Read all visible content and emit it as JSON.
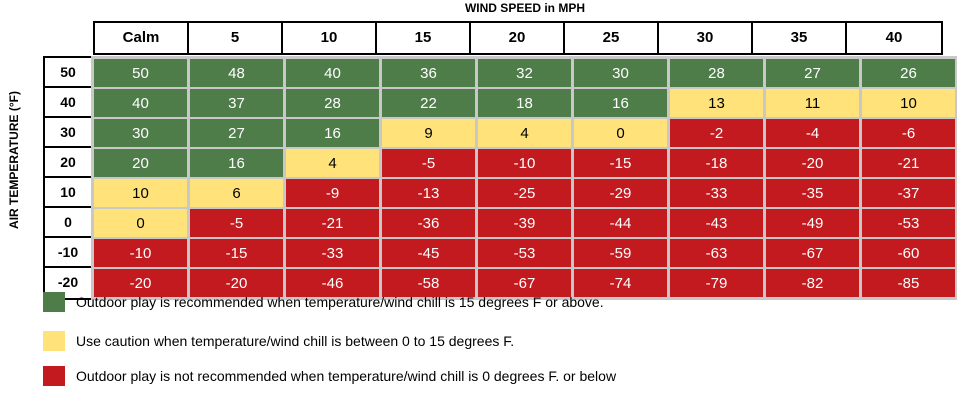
{
  "chart_data": {
    "type": "heatmap",
    "title": "WIND SPEED in MPH",
    "ylabel": "AIR TEMPERATURE (°F)",
    "columns": [
      "Calm",
      "5",
      "10",
      "15",
      "20",
      "25",
      "30",
      "35",
      "40"
    ],
    "rows": [
      "50",
      "40",
      "30",
      "20",
      "10",
      "0",
      "-10",
      "-20"
    ],
    "values": [
      [
        50,
        48,
        40,
        36,
        32,
        30,
        28,
        27,
        26
      ],
      [
        40,
        37,
        28,
        22,
        18,
        16,
        13,
        11,
        10
      ],
      [
        30,
        27,
        16,
        9,
        4,
        0,
        -2,
        -4,
        -6
      ],
      [
        20,
        16,
        4,
        -5,
        -10,
        -15,
        -18,
        -20,
        -21
      ],
      [
        10,
        6,
        -9,
        -13,
        -25,
        -29,
        -33,
        -35,
        -37
      ],
      [
        0,
        -5,
        -21,
        -36,
        -39,
        -44,
        -43,
        -49,
        -53
      ],
      [
        -10,
        -15,
        -33,
        -45,
        -53,
        -59,
        -63,
        -67,
        -60
      ],
      [
        -20,
        -20,
        -46,
        -58,
        -67,
        -74,
        -79,
        -82,
        -85
      ]
    ],
    "categories_color": [
      [
        "g",
        "g",
        "g",
        "g",
        "g",
        "g",
        "g",
        "g",
        "g"
      ],
      [
        "g",
        "g",
        "g",
        "g",
        "g",
        "g",
        "y",
        "y",
        "y"
      ],
      [
        "g",
        "g",
        "g",
        "y",
        "y",
        "y",
        "r",
        "r",
        "r"
      ],
      [
        "g",
        "g",
        "y",
        "r",
        "r",
        "r",
        "r",
        "r",
        "r"
      ],
      [
        "y",
        "y",
        "r",
        "r",
        "r",
        "r",
        "r",
        "r",
        "r"
      ],
      [
        "y",
        "r",
        "r",
        "r",
        "r",
        "r",
        "r",
        "r",
        "r"
      ],
      [
        "r",
        "r",
        "r",
        "r",
        "r",
        "r",
        "r",
        "r",
        "r"
      ],
      [
        "r",
        "r",
        "r",
        "r",
        "r",
        "r",
        "r",
        "r",
        "r"
      ]
    ],
    "colors": {
      "g": {
        "bg": "#4e7d4a",
        "fg": "#ffffff"
      },
      "y": {
        "bg": "#ffe27a",
        "fg": "#000000"
      },
      "r": {
        "bg": "#c21a1f",
        "fg": "#ffffff"
      }
    },
    "legend": [
      {
        "key": "g",
        "text": "Outdoor play is recommended when temperature/wind chill is 15 degrees F or above."
      },
      {
        "key": "y",
        "text": "Use caution when temperature/wind chill is between 0 to 15 degrees F."
      },
      {
        "key": "r",
        "text": "Outdoor play is not recommended when temperature/wind chill is 0 degrees F. or below"
      }
    ]
  }
}
